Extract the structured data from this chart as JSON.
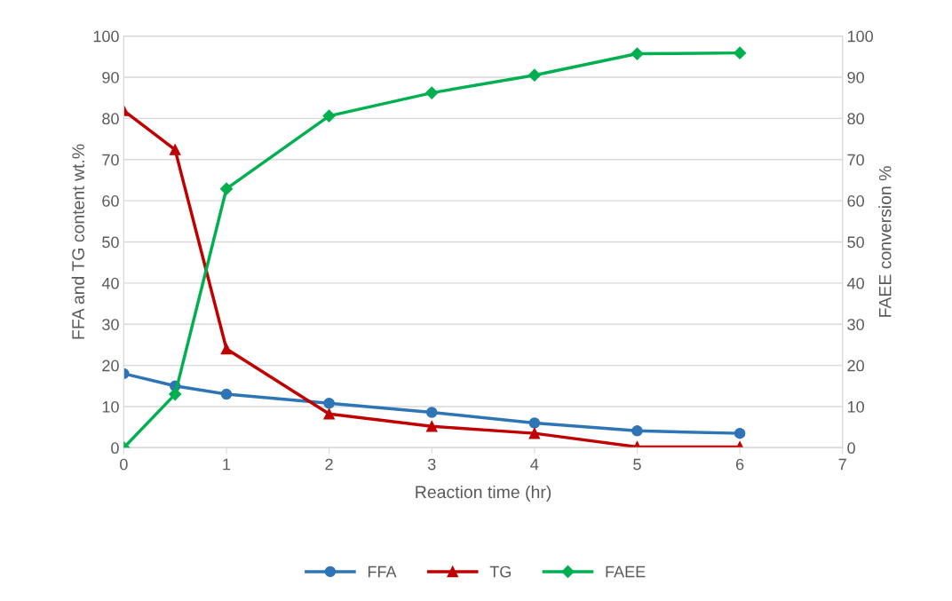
{
  "chart_data": {
    "type": "line",
    "xlabel": "Reaction time (hr)",
    "ylabel": "FFA and TG content wt.%",
    "y2label": "FAEE conversion %",
    "x": [
      0,
      0.5,
      1,
      2,
      3,
      4,
      5,
      6
    ],
    "series": [
      {
        "name": "FFA",
        "color": "#2e75b6",
        "marker": "circle",
        "values": [
          18,
          15,
          13,
          10.8,
          8.6,
          6,
          4.1,
          3.5
        ]
      },
      {
        "name": "TG",
        "color": "#c00000",
        "marker": "triangle",
        "values": [
          81.9,
          72.4,
          24,
          8.2,
          5.2,
          3.5,
          0.2,
          0.2
        ]
      },
      {
        "name": "FAEE",
        "color": "#00b050",
        "marker": "diamond",
        "axis": "y2",
        "values": [
          0,
          13,
          62.9,
          80.6,
          86.2,
          90.5,
          95.7,
          95.9
        ]
      }
    ],
    "xlim": [
      0,
      7
    ],
    "xticks": [
      0,
      1,
      2,
      3,
      4,
      5,
      6,
      7
    ],
    "ylim": [
      0,
      100
    ],
    "yticks": [
      0,
      10,
      20,
      30,
      40,
      50,
      60,
      70,
      80,
      90,
      100
    ],
    "y2lim": [
      0,
      100
    ],
    "y2ticks": [
      0,
      10,
      20,
      30,
      40,
      50,
      60,
      70,
      80,
      90,
      100
    ],
    "grid": "y",
    "legend": "bottom",
    "line_style": "solid"
  }
}
